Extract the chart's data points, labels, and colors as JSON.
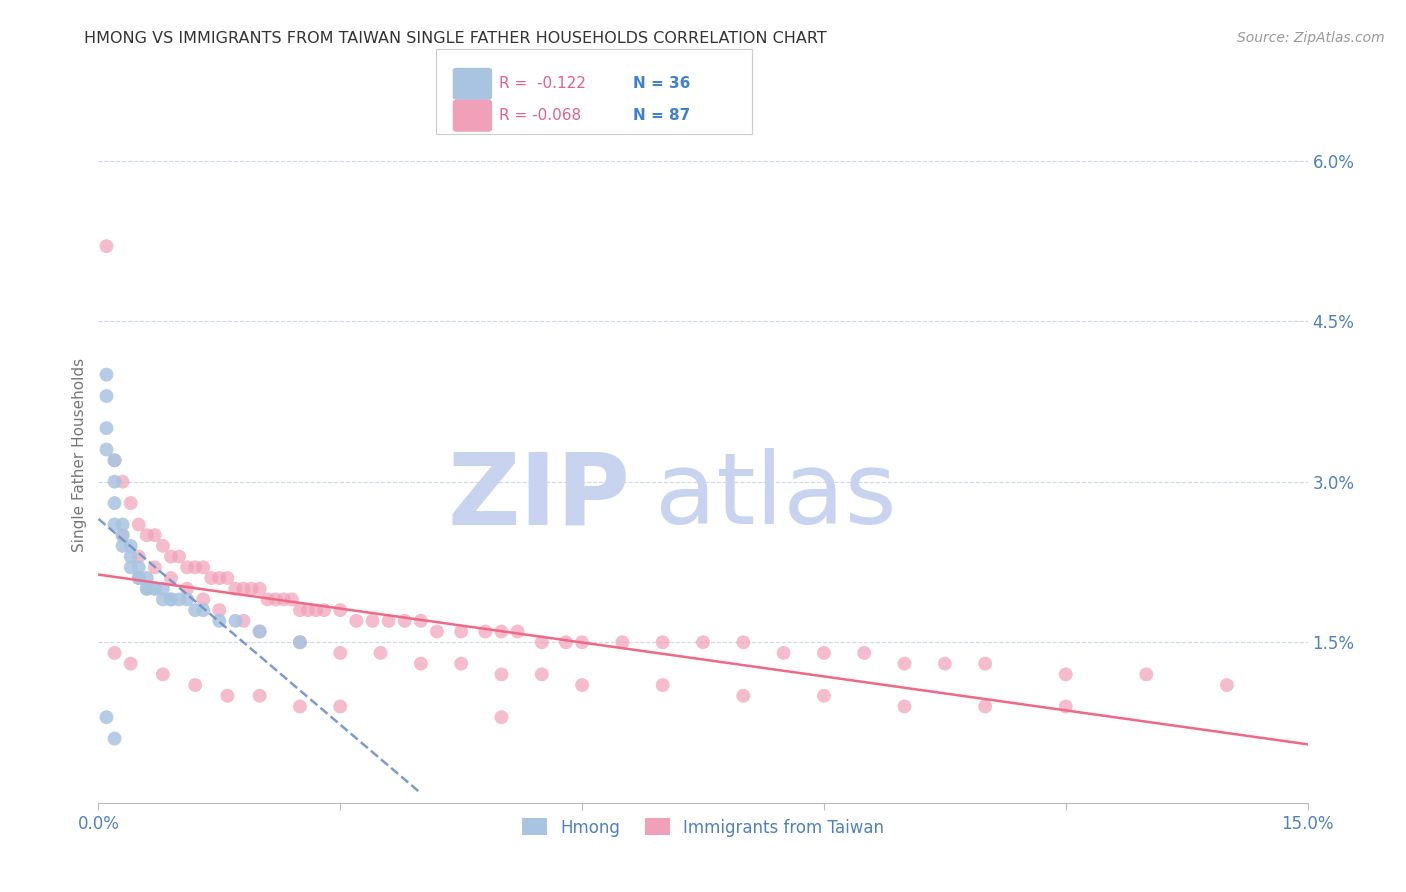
{
  "title": "HMONG VS IMMIGRANTS FROM TAIWAN SINGLE FATHER HOUSEHOLDS CORRELATION CHART",
  "source": "Source: ZipAtlas.com",
  "ylabel": "Single Father Households",
  "xmin": 0.0,
  "xmax": 0.15,
  "ymin": 0.0,
  "ymax": 0.065,
  "yticks": [
    0.015,
    0.03,
    0.045,
    0.06
  ],
  "ytick_labels": [
    "1.5%",
    "3.0%",
    "4.5%",
    "6.0%"
  ],
  "xticks": [
    0.0,
    0.03,
    0.06,
    0.09,
    0.12,
    0.15
  ],
  "xtick_labels": [
    "0.0%",
    "",
    "",
    "",
    "",
    "15.0%"
  ],
  "color_hmong": "#a8c4e0",
  "color_taiwan": "#f0a0b8",
  "color_hmong_line": "#7090c8",
  "color_taiwan_line": "#f06888",
  "color_axis_labels": "#5080c0",
  "color_grid": "#d0d8e8",
  "watermark_zip_color": "#c8d4ef",
  "watermark_atlas_color": "#c8d4ef",
  "hmong_x": [
    0.001,
    0.001,
    0.001,
    0.001,
    0.002,
    0.002,
    0.002,
    0.002,
    0.003,
    0.003,
    0.003,
    0.004,
    0.004,
    0.004,
    0.005,
    0.005,
    0.005,
    0.006,
    0.006,
    0.006,
    0.007,
    0.007,
    0.008,
    0.008,
    0.009,
    0.009,
    0.01,
    0.011,
    0.012,
    0.013,
    0.015,
    0.017,
    0.02,
    0.025,
    0.001,
    0.002
  ],
  "hmong_y": [
    0.04,
    0.038,
    0.035,
    0.033,
    0.032,
    0.03,
    0.028,
    0.026,
    0.026,
    0.025,
    0.024,
    0.024,
    0.023,
    0.022,
    0.022,
    0.021,
    0.021,
    0.021,
    0.02,
    0.02,
    0.02,
    0.02,
    0.02,
    0.019,
    0.019,
    0.019,
    0.019,
    0.019,
    0.018,
    0.018,
    0.017,
    0.017,
    0.016,
    0.015,
    0.008,
    0.006
  ],
  "taiwan_x": [
    0.001,
    0.002,
    0.003,
    0.004,
    0.005,
    0.006,
    0.007,
    0.008,
    0.009,
    0.01,
    0.011,
    0.012,
    0.013,
    0.014,
    0.015,
    0.016,
    0.017,
    0.018,
    0.019,
    0.02,
    0.021,
    0.022,
    0.023,
    0.024,
    0.025,
    0.026,
    0.027,
    0.028,
    0.03,
    0.032,
    0.034,
    0.036,
    0.038,
    0.04,
    0.042,
    0.045,
    0.048,
    0.05,
    0.052,
    0.055,
    0.058,
    0.06,
    0.065,
    0.07,
    0.075,
    0.08,
    0.085,
    0.09,
    0.095,
    0.1,
    0.105,
    0.11,
    0.12,
    0.13,
    0.14,
    0.003,
    0.005,
    0.007,
    0.009,
    0.011,
    0.013,
    0.015,
    0.018,
    0.02,
    0.025,
    0.03,
    0.035,
    0.04,
    0.045,
    0.05,
    0.055,
    0.06,
    0.07,
    0.08,
    0.09,
    0.1,
    0.11,
    0.12,
    0.002,
    0.004,
    0.008,
    0.012,
    0.016,
    0.02,
    0.025,
    0.03,
    0.05
  ],
  "taiwan_y": [
    0.052,
    0.032,
    0.03,
    0.028,
    0.026,
    0.025,
    0.025,
    0.024,
    0.023,
    0.023,
    0.022,
    0.022,
    0.022,
    0.021,
    0.021,
    0.021,
    0.02,
    0.02,
    0.02,
    0.02,
    0.019,
    0.019,
    0.019,
    0.019,
    0.018,
    0.018,
    0.018,
    0.018,
    0.018,
    0.017,
    0.017,
    0.017,
    0.017,
    0.017,
    0.016,
    0.016,
    0.016,
    0.016,
    0.016,
    0.015,
    0.015,
    0.015,
    0.015,
    0.015,
    0.015,
    0.015,
    0.014,
    0.014,
    0.014,
    0.013,
    0.013,
    0.013,
    0.012,
    0.012,
    0.011,
    0.025,
    0.023,
    0.022,
    0.021,
    0.02,
    0.019,
    0.018,
    0.017,
    0.016,
    0.015,
    0.014,
    0.014,
    0.013,
    0.013,
    0.012,
    0.012,
    0.011,
    0.011,
    0.01,
    0.01,
    0.009,
    0.009,
    0.009,
    0.014,
    0.013,
    0.012,
    0.011,
    0.01,
    0.01,
    0.009,
    0.009,
    0.008
  ]
}
